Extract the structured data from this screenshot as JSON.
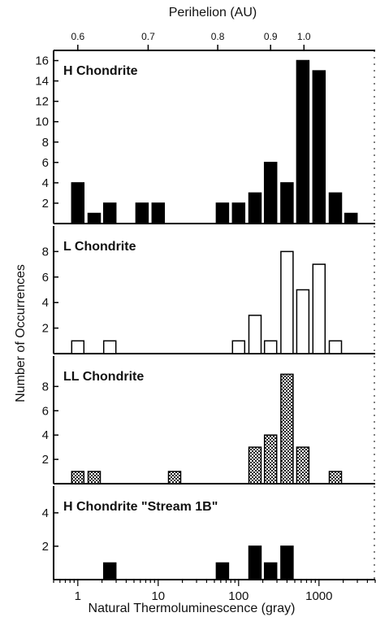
{
  "chart_data": {
    "type": "bar",
    "top_axis": {
      "title": "Perihelion (AU)",
      "ticks": [
        {
          "label": "0.6",
          "tl": 1.0
        },
        {
          "label": "0.7",
          "tl": 7.5
        },
        {
          "label": "0.8",
          "tl": 55
        },
        {
          "label": "0.9",
          "tl": 250
        },
        {
          "label": "1.0",
          "tl": 650
        }
      ]
    },
    "x_axis": {
      "title": "Natural Thermoluminescence (gray)",
      "scale": "log",
      "xlim": [
        0.5,
        5000
      ],
      "ticks": [
        {
          "label": "1",
          "value": 1
        },
        {
          "label": "10",
          "value": 10
        },
        {
          "label": "100",
          "value": 100
        },
        {
          "label": "1000",
          "value": 1000
        }
      ]
    },
    "y_axis": {
      "title": "Number of Occurrences"
    },
    "panels": [
      {
        "title": "H Chondrite",
        "fill": "solid",
        "ylim": [
          0,
          17
        ],
        "yticks": [
          {
            "label": "2",
            "value": 2
          },
          {
            "label": "4",
            "value": 4
          },
          {
            "label": "6",
            "value": 6
          },
          {
            "label": "8",
            "value": 8
          },
          {
            "label": "10",
            "value": 10
          },
          {
            "label": "12",
            "value": 12
          },
          {
            "label": "14",
            "value": 14
          },
          {
            "label": "16",
            "value": 16
          }
        ],
        "bars": [
          {
            "x": 1.0,
            "count": 4
          },
          {
            "x": 1.6,
            "count": 1
          },
          {
            "x": 2.5,
            "count": 2
          },
          {
            "x": 6.3,
            "count": 2
          },
          {
            "x": 10,
            "count": 2
          },
          {
            "x": 63,
            "count": 2
          },
          {
            "x": 100,
            "count": 2
          },
          {
            "x": 160,
            "count": 3
          },
          {
            "x": 250,
            "count": 6
          },
          {
            "x": 400,
            "count": 4
          },
          {
            "x": 630,
            "count": 16
          },
          {
            "x": 1000,
            "count": 15
          },
          {
            "x": 1600,
            "count": 3
          },
          {
            "x": 2500,
            "count": 1
          }
        ]
      },
      {
        "title": "L Chondrite",
        "fill": "open",
        "ylim": [
          0,
          10
        ],
        "yticks": [
          {
            "label": "2",
            "value": 2
          },
          {
            "label": "4",
            "value": 4
          },
          {
            "label": "6",
            "value": 6
          },
          {
            "label": "8",
            "value": 8
          }
        ],
        "bars": [
          {
            "x": 1.0,
            "count": 1
          },
          {
            "x": 2.5,
            "count": 1
          },
          {
            "x": 100,
            "count": 1
          },
          {
            "x": 160,
            "count": 3
          },
          {
            "x": 250,
            "count": 1
          },
          {
            "x": 400,
            "count": 8
          },
          {
            "x": 630,
            "count": 5
          },
          {
            "x": 1000,
            "count": 7
          },
          {
            "x": 1600,
            "count": 1
          }
        ]
      },
      {
        "title": "LL Chondrite",
        "fill": "hatched",
        "ylim": [
          0,
          10.5
        ],
        "yticks": [
          {
            "label": "2",
            "value": 2
          },
          {
            "label": "4",
            "value": 4
          },
          {
            "label": "6",
            "value": 6
          },
          {
            "label": "8",
            "value": 8
          }
        ],
        "bars": [
          {
            "x": 1.0,
            "count": 1
          },
          {
            "x": 1.6,
            "count": 1
          },
          {
            "x": 16,
            "count": 1
          },
          {
            "x": 160,
            "count": 3
          },
          {
            "x": 250,
            "count": 4
          },
          {
            "x": 400,
            "count": 9
          },
          {
            "x": 630,
            "count": 3
          },
          {
            "x": 1600,
            "count": 1
          }
        ]
      },
      {
        "title": "H Chondrite \"Stream 1B\"",
        "fill": "solid",
        "ylim": [
          0,
          5.6
        ],
        "yticks": [
          {
            "label": "2",
            "value": 2
          },
          {
            "label": "4",
            "value": 4
          }
        ],
        "bars": [
          {
            "x": 2.5,
            "count": 1
          },
          {
            "x": 63,
            "count": 1
          },
          {
            "x": 160,
            "count": 2
          },
          {
            "x": 250,
            "count": 1
          },
          {
            "x": 400,
            "count": 2
          }
        ]
      }
    ]
  }
}
